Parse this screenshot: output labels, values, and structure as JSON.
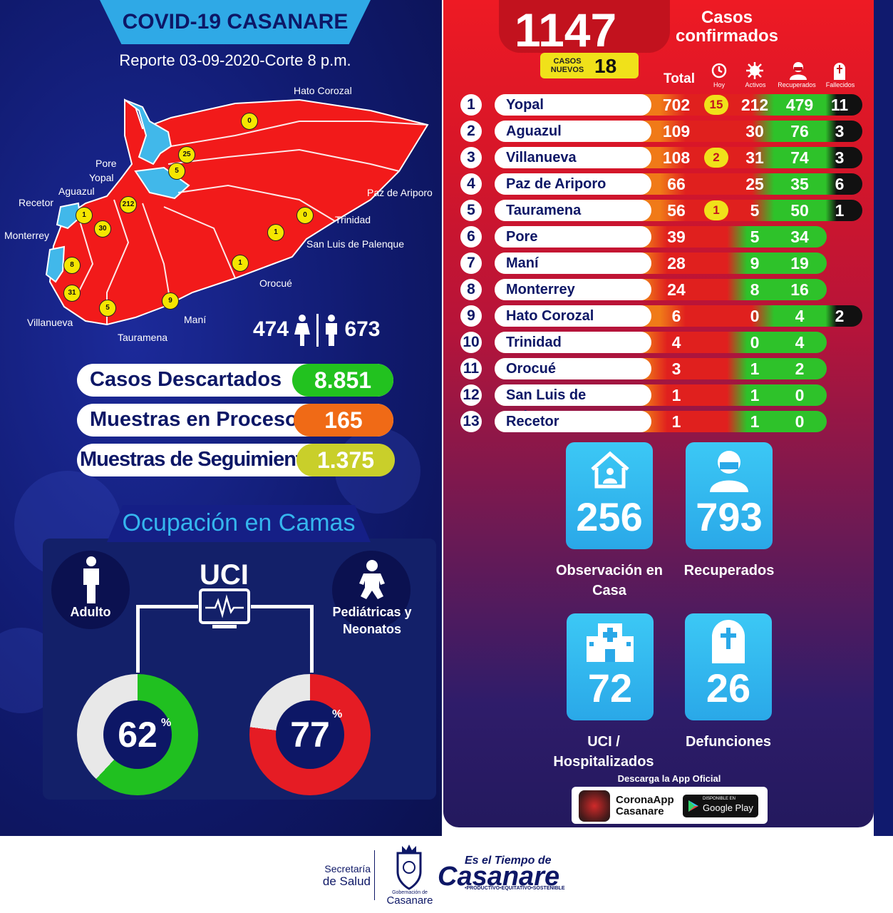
{
  "header": {
    "title": "COVID-19 CASANARE",
    "report": "Reporte 03-09-2020-Corte 8 p.m."
  },
  "map": {
    "labels": [
      "Hato Corozal",
      "Pore",
      "Yopal",
      "Aguazul",
      "Recetor",
      "Monterrey",
      "Villanueva",
      "Tauramena",
      "Maní",
      "Orocué",
      "San Luis de Palenque",
      "Trinidad",
      "Paz de Ariporo"
    ],
    "badges": [
      "0",
      "25",
      "5",
      "212",
      "1",
      "30",
      "8",
      "31",
      "5",
      "9",
      "1",
      "1",
      "0"
    ]
  },
  "gender": {
    "female": "474",
    "male": "673"
  },
  "summary": [
    {
      "label": "Casos  Descartados",
      "value": "8.851",
      "color": "#22c21f"
    },
    {
      "label": "Muestras en Proceso",
      "value": "165",
      "color": "#f06a16"
    },
    {
      "label": "Muestras de Seguimiento",
      "value": "1.375",
      "color": "#c9cf2a"
    }
  ],
  "beds": {
    "title": "Ocupación en Camas",
    "uci": "UCI",
    "adult_label": "Adulto",
    "ped_label": "Pediátricas y Neonatos",
    "adult_pct": 62,
    "ped_pct": 77,
    "adult_pct_text": "62",
    "ped_pct_text": "77",
    "pct_sign": "%"
  },
  "totals": {
    "confirmed": "1147",
    "confirmed_label": "Casos confirmados",
    "new_label": "CASOS NUEVOS",
    "new_value": "18"
  },
  "table": {
    "headers": {
      "total": "Total",
      "hoy": "Hoy",
      "activos": "Activos",
      "recuperados": "Recuperados",
      "fallecidos": "Fallecidos"
    },
    "rows": [
      {
        "n": "1",
        "name": "Yopal",
        "total": "702",
        "hoy": "15",
        "activos": "212",
        "recuperados": "479",
        "fallecidos": "11"
      },
      {
        "n": "2",
        "name": "Aguazul",
        "total": "109",
        "hoy": "",
        "activos": "30",
        "recuperados": "76",
        "fallecidos": "3"
      },
      {
        "n": "3",
        "name": "Villanueva",
        "total": "108",
        "hoy": "2",
        "activos": "31",
        "recuperados": "74",
        "fallecidos": "3"
      },
      {
        "n": "4",
        "name": "Paz de  Ariporo",
        "total": "66",
        "hoy": "",
        "activos": "25",
        "recuperados": "35",
        "fallecidos": "6"
      },
      {
        "n": "5",
        "name": "Tauramena",
        "total": "56",
        "hoy": "1",
        "activos": "5",
        "recuperados": "50",
        "fallecidos": "1"
      },
      {
        "n": "6",
        "name": "Pore",
        "total": "39",
        "hoy": "",
        "activos": "5",
        "recuperados": "34",
        "fallecidos": ""
      },
      {
        "n": "7",
        "name": "Maní",
        "total": "28",
        "hoy": "",
        "activos": "9",
        "recuperados": "19",
        "fallecidos": ""
      },
      {
        "n": "8",
        "name": "Monterrey",
        "total": "24",
        "hoy": "",
        "activos": "8",
        "recuperados": "16",
        "fallecidos": ""
      },
      {
        "n": "9",
        "name": "Hato Corozal",
        "total": "6",
        "hoy": "",
        "activos": "0",
        "recuperados": "4",
        "fallecidos": "2"
      },
      {
        "n": "10",
        "name": "Trinidad",
        "total": "4",
        "hoy": "",
        "activos": "0",
        "recuperados": "4",
        "fallecidos": ""
      },
      {
        "n": "11",
        "name": "Orocué",
        "total": "3",
        "hoy": "",
        "activos": "1",
        "recuperados": "2",
        "fallecidos": ""
      },
      {
        "n": "12",
        "name": "San Luis de Palenque",
        "total": "1",
        "hoy": "",
        "activos": "1",
        "recuperados": "0",
        "fallecidos": ""
      },
      {
        "n": "13",
        "name": "Recetor",
        "total": "1",
        "hoy": "",
        "activos": "1",
        "recuperados": "0",
        "fallecidos": ""
      }
    ]
  },
  "cards": [
    {
      "icon": "house-icon",
      "value": "256",
      "label": "Observación en Casa"
    },
    {
      "icon": "person-mask-icon",
      "value": "793",
      "label": "Recuperados"
    },
    {
      "icon": "hospital-icon",
      "value": "72",
      "label": "UCI / Hospitalizados"
    },
    {
      "icon": "tombstone-icon",
      "value": "26",
      "label": "Defunciones"
    }
  ],
  "app": {
    "download_label": "Descarga la App Oficial",
    "name_line1": "CoronaApp",
    "name_line2": "Casanare",
    "store_small": "DISPONIBLE EN",
    "store": "Google Play"
  },
  "footer": {
    "secretaria_line1": "Secretaría",
    "secretaria_line2": "de Salud",
    "gobernacion_small": "Gobernación de",
    "gobernacion": "Casanare",
    "slogan_line1": "Es el Tiempo de",
    "slogan_line2": "Casanare",
    "slogan_small": "•PRODUCTIVO•EQUITATIVO•SOSTENIBLE"
  }
}
